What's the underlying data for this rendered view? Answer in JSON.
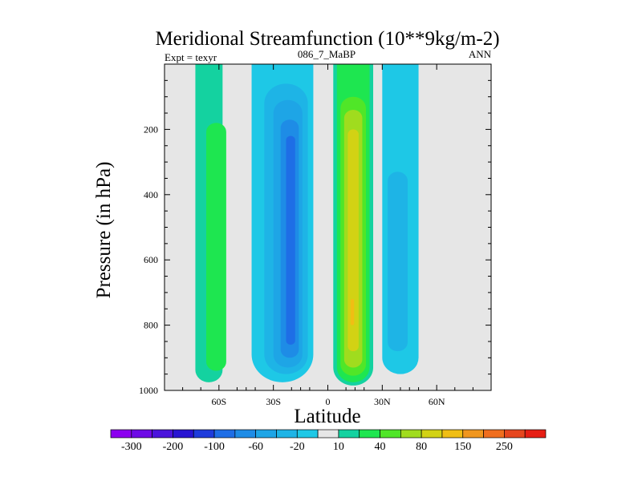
{
  "chart_data": {
    "type": "heatmap",
    "title": "Meridional Streamfunction (10**9kg/m-2)",
    "left_string": "Expt = texyr",
    "center_string": "086_7_MaBP",
    "right_string": "ANN",
    "xlabel": "Latitude",
    "ylabel": "Pressure (in hPa)",
    "xlim": [
      -90,
      90
    ],
    "ylim": [
      0,
      1000
    ],
    "y_reversed": true,
    "x_ticks": [
      {
        "value": -60,
        "label": "60S"
      },
      {
        "value": -30,
        "label": "30S"
      },
      {
        "value": 0,
        "label": "0"
      },
      {
        "value": 30,
        "label": "30N"
      },
      {
        "value": 60,
        "label": "60N"
      }
    ],
    "y_ticks": [
      {
        "value": 200,
        "label": "200"
      },
      {
        "value": 400,
        "label": "400"
      },
      {
        "value": 600,
        "label": "600"
      },
      {
        "value": 800,
        "label": "800"
      },
      {
        "value": 1000,
        "label": "1000"
      }
    ],
    "background_color": "#e6e6e6",
    "contour_levels": [
      -300,
      -250,
      -200,
      -150,
      -100,
      -80,
      -60,
      -40,
      -20,
      -10,
      10,
      20,
      40,
      60,
      80,
      100,
      150,
      200,
      250,
      300
    ],
    "colorbar": {
      "colors": [
        "#8c00f0",
        "#6e0ae6",
        "#4b14dc",
        "#2814d2",
        "#1e3cdc",
        "#1e6ee6",
        "#1e8ce6",
        "#1ea5e6",
        "#1eb4e6",
        "#1ec8e6",
        "#e6e6e6",
        "#14d2a0",
        "#1ee650",
        "#50e628",
        "#a0dc1e",
        "#d2d214",
        "#f0be14",
        "#f0961e",
        "#f06e1e",
        "#e6461e",
        "#e61e14"
      ],
      "labels": [
        {
          "boundary": 1,
          "text": "-300"
        },
        {
          "boundary": 3,
          "text": "-200"
        },
        {
          "boundary": 5,
          "text": "-100"
        },
        {
          "boundary": 7,
          "text": "-60"
        },
        {
          "boundary": 9,
          "text": "-20"
        },
        {
          "boundary": 11,
          "text": "10"
        },
        {
          "boundary": 13,
          "text": "40"
        },
        {
          "boundary": 15,
          "text": "80"
        },
        {
          "boundary": 17,
          "text": "150"
        },
        {
          "boundary": 19,
          "text": "250"
        }
      ]
    },
    "cells": [
      {
        "name": "sh-polar-cell",
        "color": "#14d2a0",
        "lat": [
          -73,
          -58
        ],
        "p": [
          0,
          975
        ]
      },
      {
        "name": "sh-polar-cell-core",
        "color": "#1ee650",
        "lat": [
          -67,
          -56
        ],
        "p": [
          180,
          940
        ]
      },
      {
        "name": "sh-hadley-cell",
        "color": "#1ec8e6",
        "lat": [
          -42,
          -8
        ],
        "p": [
          0,
          975
        ]
      },
      {
        "name": "sh-hadley-level-2",
        "color": "#1eb4e6",
        "lat": [
          -35,
          -11
        ],
        "p": [
          60,
          950
        ]
      },
      {
        "name": "sh-hadley-level-3",
        "color": "#1ea5e6",
        "lat": [
          -30,
          -14
        ],
        "p": [
          110,
          930
        ]
      },
      {
        "name": "sh-hadley-level-4",
        "color": "#1e8ce6",
        "lat": [
          -26,
          -16
        ],
        "p": [
          170,
          900
        ]
      },
      {
        "name": "sh-hadley-core",
        "color": "#1e6ee6",
        "lat": [
          -23,
          -18
        ],
        "p": [
          220,
          860
        ]
      },
      {
        "name": "nh-hadley-cell",
        "color": "#14d2a0",
        "lat": [
          3,
          25
        ],
        "p": [
          0,
          985
        ]
      },
      {
        "name": "nh-hadley-level-2",
        "color": "#1ee650",
        "lat": [
          5,
          23
        ],
        "p": [
          0,
          975
        ]
      },
      {
        "name": "nh-hadley-level-3",
        "color": "#50e628",
        "lat": [
          7,
          21
        ],
        "p": [
          100,
          955
        ]
      },
      {
        "name": "nh-hadley-level-4",
        "color": "#a0dc1e",
        "lat": [
          9,
          19
        ],
        "p": [
          140,
          930
        ]
      },
      {
        "name": "nh-hadley-core",
        "color": "#d2d214",
        "lat": [
          11,
          17
        ],
        "p": [
          200,
          880
        ]
      },
      {
        "name": "nh-hadley-max",
        "color": "#f0be14",
        "lat": [
          12.5,
          14.5
        ],
        "p": [
          720,
          800
        ]
      },
      {
        "name": "nh-ferrel-cell",
        "color": "#1ec8e6",
        "lat": [
          30,
          50
        ],
        "p": [
          0,
          950
        ]
      },
      {
        "name": "nh-ferrel-core",
        "color": "#1eb4e6",
        "lat": [
          33,
          44
        ],
        "p": [
          330,
          880
        ]
      }
    ]
  }
}
